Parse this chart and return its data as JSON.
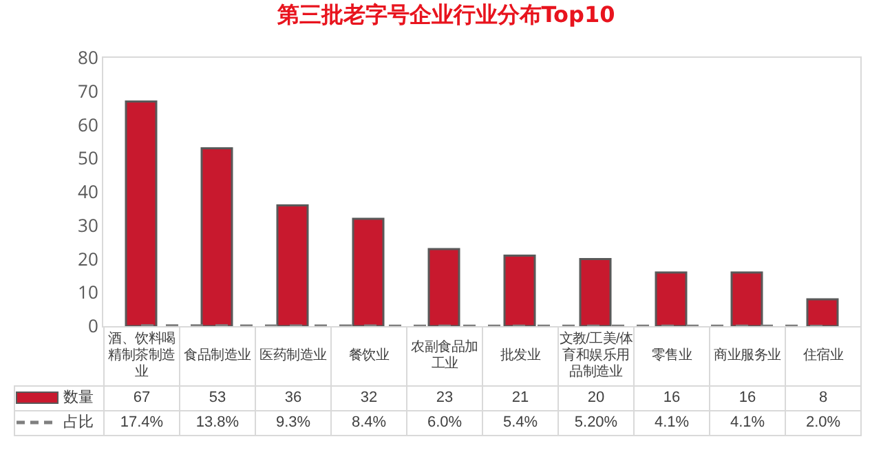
{
  "chart_data": {
    "type": "bar",
    "title": "第三批老字号企业行业分布Top10",
    "categories": [
      "酒、饮料喝精制茶制造业",
      "食品制造业",
      "医药制造业",
      "餐饮业",
      "农副食品加工业",
      "批发业",
      "文教/工美/体育和娱乐用品制造业",
      "零售业",
      "商业服务业",
      "住宿业"
    ],
    "series": [
      {
        "name": "数量",
        "color": "#c8192e",
        "values": [
          67,
          53,
          36,
          32,
          23,
          21,
          20,
          16,
          16,
          8
        ],
        "value_labels": [
          "67",
          "53",
          "36",
          "32",
          "23",
          "21",
          "20",
          "16",
          "16",
          "8"
        ]
      },
      {
        "name": "占比",
        "type": "line",
        "line_style": "dashed",
        "color": "#7f7f7f",
        "values": [
          0.174,
          0.138,
          0.093,
          0.084,
          0.06,
          0.054,
          0.052,
          0.041,
          0.041,
          0.02
        ],
        "value_labels": [
          "17.4%",
          "13.8%",
          "9.3%",
          "8.4%",
          "6.0%",
          "5.4%",
          "5.20%",
          "4.1%",
          "4.1%",
          "2.0%"
        ]
      }
    ],
    "ylim": [
      0,
      80
    ],
    "yticks": [
      0,
      10,
      20,
      30,
      40,
      50,
      60,
      70,
      80
    ],
    "grid": false,
    "legend": "bottom"
  }
}
